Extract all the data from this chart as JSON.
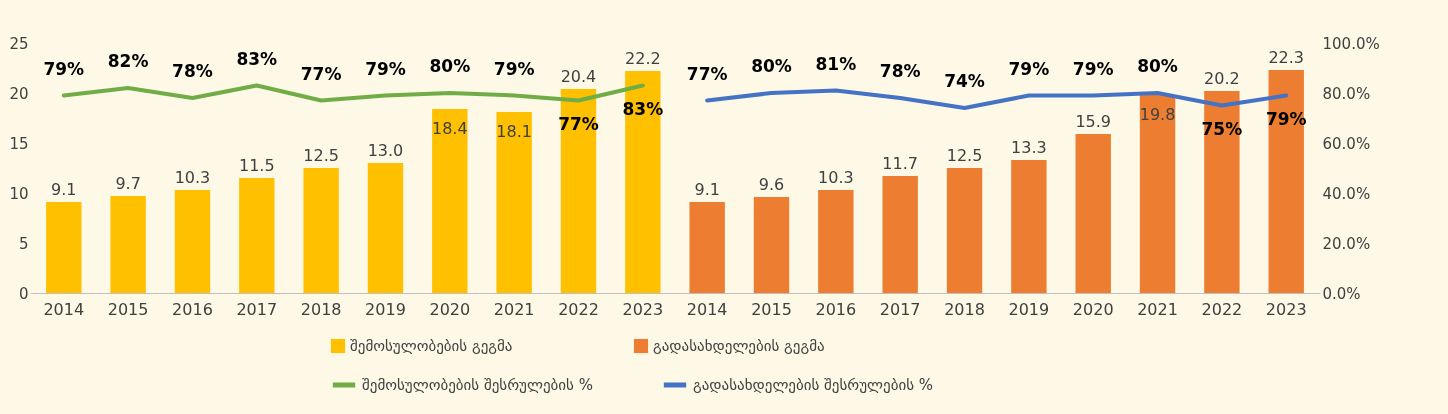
{
  "chart_data": {
    "type": "bar",
    "categories": [
      "2014",
      "2015",
      "2016",
      "2017",
      "2018",
      "2019",
      "2020",
      "2021",
      "2022",
      "2023",
      "2014",
      "2015",
      "2016",
      "2017",
      "2018",
      "2019",
      "2020",
      "2021",
      "2022",
      "2023"
    ],
    "series": [
      {
        "name": "შემოსულობების გეგმა",
        "color": "#ffc000",
        "values": [
          9.1,
          9.7,
          10.3,
          11.5,
          12.5,
          13.0,
          18.4,
          18.1,
          20.4,
          22.2,
          null,
          null,
          null,
          null,
          null,
          null,
          null,
          null,
          null,
          null
        ],
        "value_labels": [
          "9.1",
          "9.7",
          "10.3",
          "11.5",
          "12.5",
          "13.0",
          "18.4",
          "18.1",
          "20.4",
          "22.2",
          null,
          null,
          null,
          null,
          null,
          null,
          null,
          null,
          null,
          null
        ]
      },
      {
        "name": "გადასახდელების გეგმა",
        "color": "#ed7d31",
        "values": [
          null,
          null,
          null,
          null,
          null,
          null,
          null,
          null,
          null,
          null,
          9.1,
          9.6,
          10.3,
          11.7,
          12.5,
          13.3,
          15.9,
          19.8,
          20.2,
          22.3
        ],
        "value_labels": [
          null,
          null,
          null,
          null,
          null,
          null,
          null,
          null,
          null,
          null,
          "9.1",
          "9.6",
          "10.3",
          "11.7",
          "12.5",
          "13.3",
          "15.9",
          "19.8",
          "20.2",
          "22.3"
        ]
      },
      {
        "name": "შემოსულობების შესრულების %",
        "type": "line",
        "axis": "y2",
        "color": "#70ad47",
        "values": [
          79,
          82,
          78,
          83,
          77,
          79,
          80,
          79,
          77,
          83,
          null,
          null,
          null,
          null,
          null,
          null,
          null,
          null,
          null,
          null
        ],
        "value_labels": [
          "79%",
          "82%",
          "78%",
          "83%",
          "77%",
          "79%",
          "80%",
          "79%",
          "77%",
          "83%",
          null,
          null,
          null,
          null,
          null,
          null,
          null,
          null,
          null,
          null
        ]
      },
      {
        "name": "გადასახდელების შესრულების %",
        "type": "line",
        "axis": "y2",
        "color": "#4472c4",
        "values": [
          null,
          null,
          null,
          null,
          null,
          null,
          null,
          null,
          null,
          null,
          77,
          80,
          81,
          78,
          74,
          79,
          79,
          80,
          75,
          79
        ],
        "value_labels": [
          null,
          null,
          null,
          null,
          null,
          null,
          null,
          null,
          null,
          null,
          "77%",
          "80%",
          "81%",
          "78%",
          "74%",
          "79%",
          "79%",
          "80%",
          "75%",
          "79%"
        ]
      }
    ],
    "ylim": [
      0,
      25
    ],
    "yticks": [
      0,
      5,
      10,
      15,
      20,
      25
    ],
    "y2lim": [
      0,
      100
    ],
    "y2ticks": [
      {
        "value": 0,
        "label": "0.0%"
      },
      {
        "value": 20,
        "label": "20.0%"
      },
      {
        "value": 40,
        "label": "40.0%"
      },
      {
        "value": 60,
        "label": "60.0%"
      },
      {
        "value": 80,
        "label": "80.0%"
      },
      {
        "value": 100,
        "label": "100.0%"
      }
    ],
    "legend": "bottom"
  }
}
